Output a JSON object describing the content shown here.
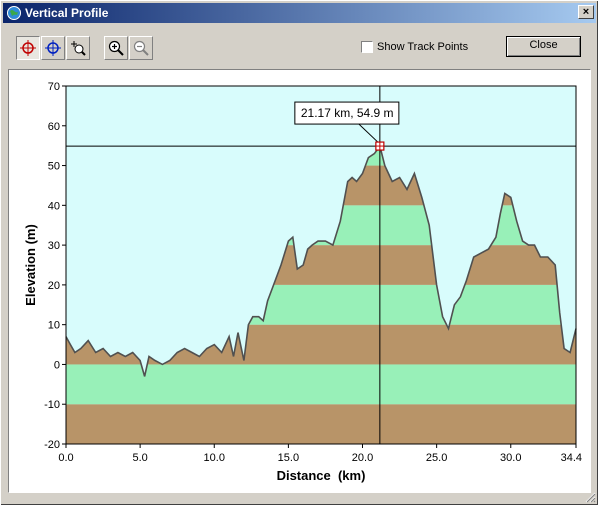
{
  "window": {
    "title": "Vertical Profile",
    "close_glyph": "×"
  },
  "toolbar": {
    "buttons": [
      {
        "name": "select-point-tool",
        "icon": "red-crosshair-icon",
        "pressed": true
      },
      {
        "name": "move-tool",
        "icon": "blue-crosshair-icon",
        "pressed": false
      },
      {
        "name": "zoom-box-tool",
        "icon": "zoom-box-icon",
        "pressed": false
      },
      {
        "name": "zoom-in-tool",
        "icon": "zoom-in-icon",
        "pressed": false
      },
      {
        "name": "zoom-out-tool",
        "icon": "zoom-out-icon",
        "pressed": false
      }
    ],
    "show_track_points_label": "Show Track Points",
    "show_track_points_checked": false,
    "close_label": "Close"
  },
  "chart_data": {
    "type": "area",
    "xlabel": "Distance  (km)",
    "ylabel": "Elevation (m)",
    "xlim": [
      0,
      34.4
    ],
    "ylim": [
      -20,
      70
    ],
    "xticks": [
      "0.0",
      "5.0",
      "10.0",
      "15.0",
      "20.0",
      "25.0",
      "30.0",
      "34.4"
    ],
    "yticks": [
      "70",
      "60",
      "50",
      "40",
      "30",
      "20",
      "10",
      "0",
      "-10",
      "-20"
    ],
    "band_colors": [
      "#b89468",
      "#98f0b8"
    ],
    "sky_color": "#d8fcfc",
    "line_color": "#505050",
    "cursor": {
      "x": 21.17,
      "y": 54.9,
      "label": "21.17 km, 54.9 m"
    },
    "series": [
      {
        "x": [
          0,
          0.3,
          0.6,
          1.0,
          1.5,
          2.0,
          2.5,
          3.0,
          3.5,
          4.0,
          4.5,
          5.0,
          5.3,
          5.6,
          6.0,
          6.5,
          7.0,
          7.5,
          8.0,
          8.5,
          9.0,
          9.5,
          10.0,
          10.5,
          11.0,
          11.3,
          11.6,
          12.0,
          12.3,
          12.6,
          13.0,
          13.3,
          13.6,
          14.0,
          14.5,
          15.0,
          15.3,
          15.6,
          16.0,
          16.3,
          16.6,
          17.0,
          17.5,
          18.0,
          18.5,
          19.0,
          19.3,
          19.6,
          20.0,
          20.4,
          20.8,
          21.17,
          21.5,
          22.0,
          22.5,
          23.0,
          23.5,
          24.0,
          24.5,
          25.0,
          25.4,
          25.8,
          26.2,
          26.6,
          27.0,
          27.5,
          28.0,
          28.5,
          29.0,
          29.3,
          29.6,
          30.0,
          30.4,
          30.8,
          31.2,
          31.6,
          32.0,
          32.5,
          33.0,
          33.3,
          33.6,
          34.0,
          34.4
        ],
        "values": [
          7,
          5,
          3,
          4,
          6,
          3,
          4,
          2,
          3,
          2,
          3,
          1,
          -3,
          2,
          1,
          0,
          1,
          3,
          4,
          3,
          2,
          4,
          5,
          3,
          7,
          2,
          8,
          1,
          10,
          12,
          12,
          11,
          16,
          20,
          25,
          31,
          32,
          24,
          25,
          29,
          30,
          31,
          31,
          30,
          36,
          46,
          47,
          46,
          48,
          52,
          53,
          54.9,
          50,
          46,
          47,
          44,
          48,
          42,
          35,
          20,
          12,
          9,
          15,
          17,
          21,
          27,
          28,
          29,
          32,
          38,
          43,
          42,
          36,
          31,
          30,
          30,
          27,
          27,
          25,
          13,
          4,
          3,
          9
        ]
      }
    ]
  }
}
